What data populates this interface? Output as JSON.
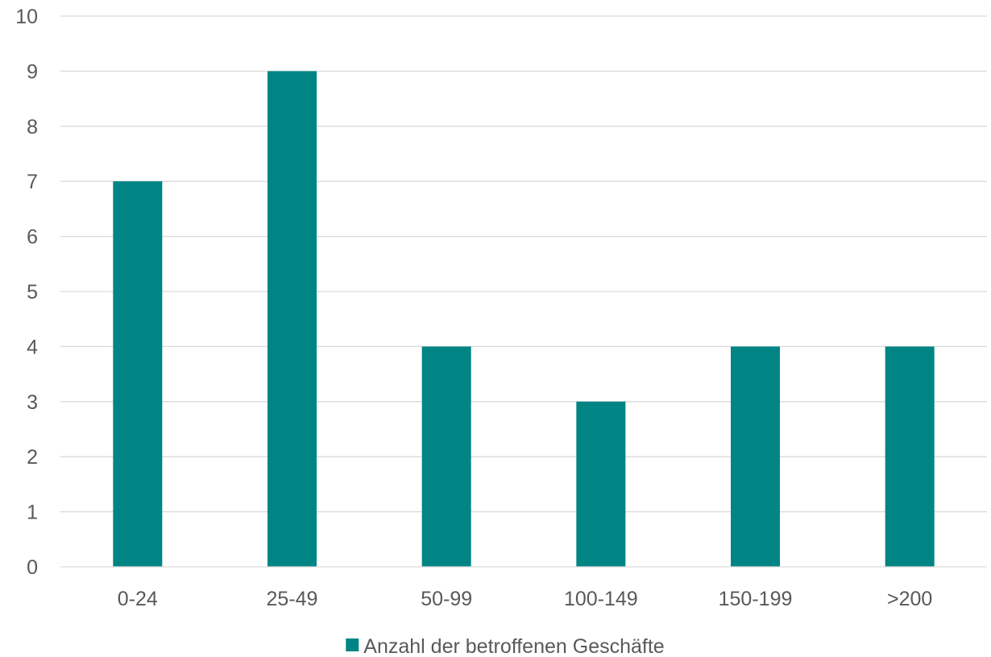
{
  "chart_data": {
    "type": "bar",
    "categories": [
      "0-24",
      "25-49",
      "50-99",
      "100-149",
      "150-199",
      ">200"
    ],
    "series": [
      {
        "name": "Anzahl der betroffenen Geschäfte",
        "values": [
          7,
          9,
          4,
          3,
          4,
          4
        ],
        "color": "#008484"
      }
    ],
    "ylim": [
      0,
      10
    ],
    "yticks": [
      "0",
      "1",
      "2",
      "3",
      "4",
      "5",
      "6",
      "7",
      "8",
      "9",
      "10"
    ],
    "grid": true,
    "legend": "bottom-center"
  }
}
